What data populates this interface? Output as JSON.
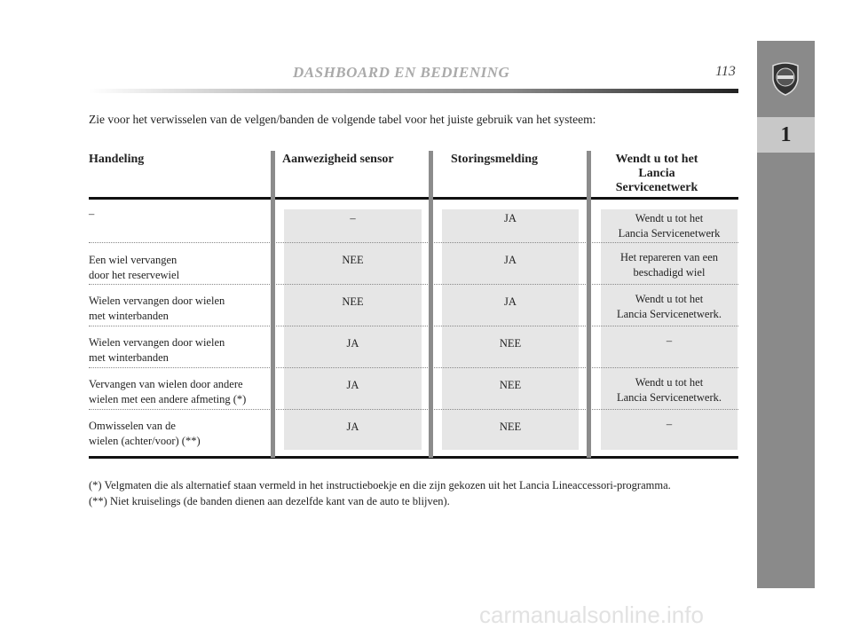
{
  "header": {
    "title": "DASHBOARD EN BEDIENING",
    "page_number": "113"
  },
  "sidebar": {
    "section_number": "1",
    "logo_text": "LANCIA"
  },
  "intro": "Zie voor het verwisselen van de velgen/banden de volgende tabel voor het juiste gebruik van het systeem:",
  "table": {
    "headers": [
      "Handeling",
      "Aanwezigheid sensor",
      "Storingsmelding",
      "Wendt u tot het Lancia Servicenetwerk"
    ],
    "rows": [
      {
        "action": [
          "–",
          ""
        ],
        "sensor": "–",
        "fault": "JA",
        "service": [
          "Wendt u tot het",
          "Lancia Servicenetwerk"
        ]
      },
      {
        "action": [
          "Een wiel vervangen",
          "door het reservewiel"
        ],
        "sensor": "NEE",
        "fault": "JA",
        "service": [
          "Het repareren van een",
          "beschadigd wiel"
        ]
      },
      {
        "action": [
          "Wielen vervangen door wielen",
          "met winterbanden"
        ],
        "sensor": "NEE",
        "fault": "JA",
        "service": [
          "Wendt u tot het",
          "Lancia Servicenetwerk."
        ]
      },
      {
        "action": [
          "Wielen vervangen door wielen",
          "met winterbanden"
        ],
        "sensor": "JA",
        "fault": "NEE",
        "service": [
          "–",
          ""
        ]
      },
      {
        "action": [
          "Vervangen van wielen door andere",
          "wielen met een andere afmeting (*)"
        ],
        "sensor": "JA",
        "fault": "NEE",
        "service": [
          "Wendt u tot het",
          "Lancia Servicenetwerk."
        ]
      },
      {
        "action": [
          "Omwisselen van de",
          "wielen (achter/voor) (**)"
        ],
        "sensor": "JA",
        "fault": "NEE",
        "service": [
          "–",
          ""
        ]
      }
    ]
  },
  "footnotes": [
    "(*) Velgmaten die als alternatief staan vermeld in het instructieboekje en die zijn gekozen uit het Lancia Lineaccessori-programma.",
    "(**) Niet kruiselings (de banden dienen aan dezelfde kant van de auto te blijven)."
  ],
  "watermark": "carmanualsonline.info"
}
